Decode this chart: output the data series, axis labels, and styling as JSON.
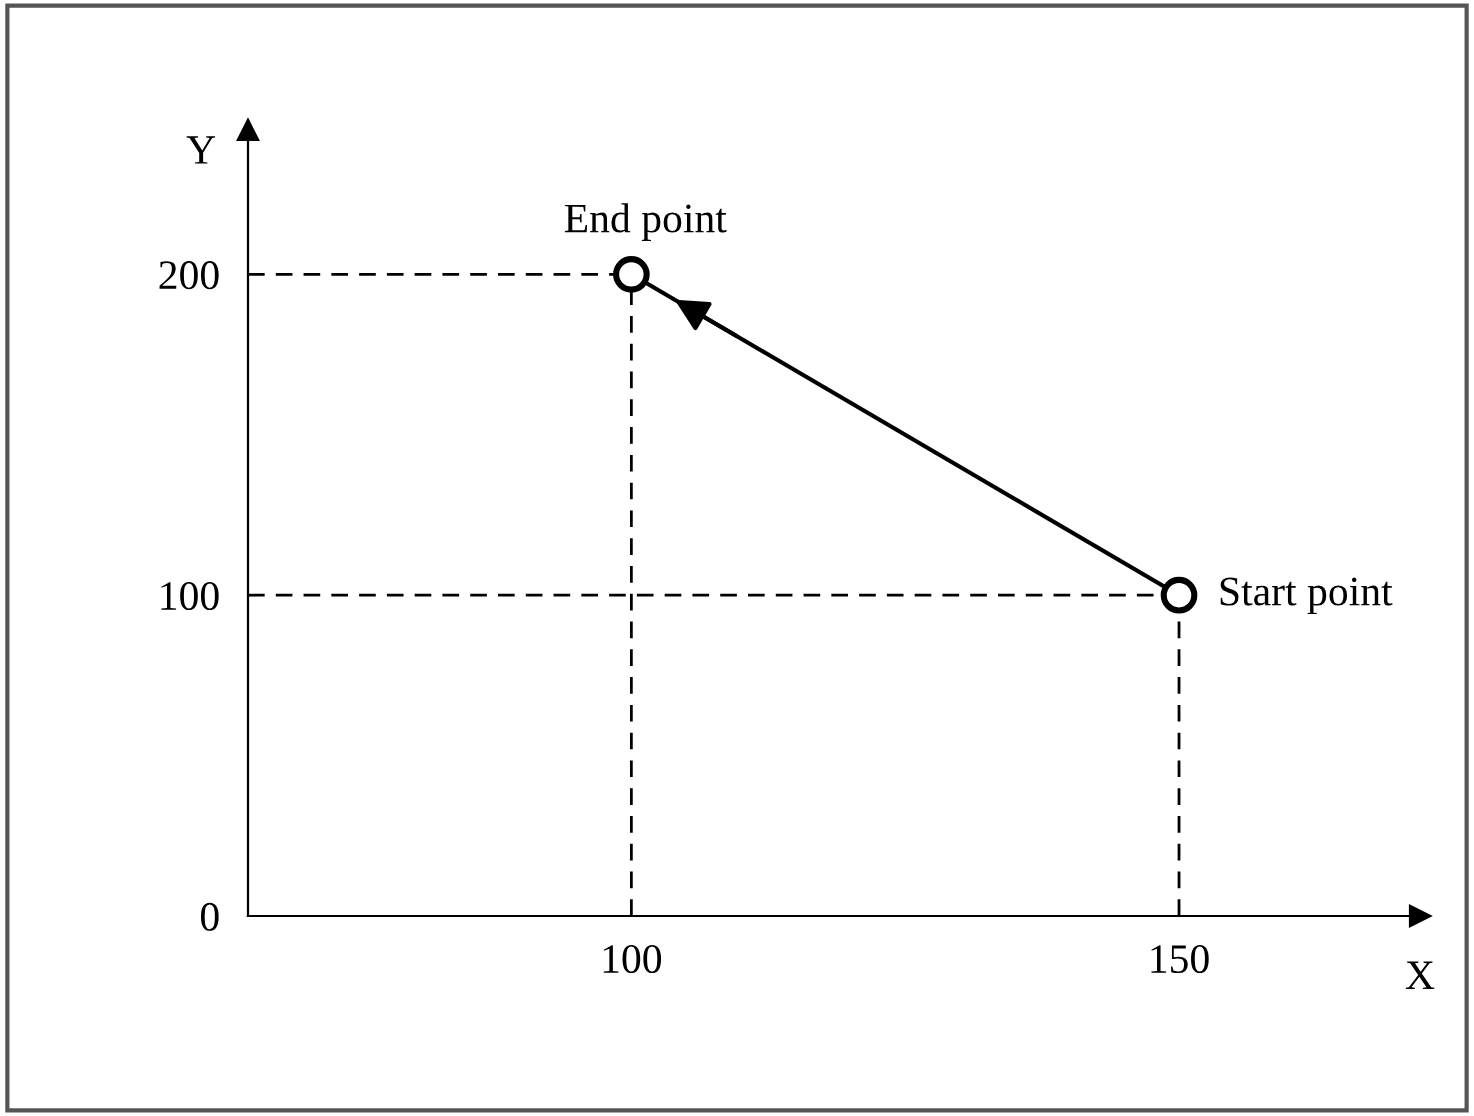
{
  "chart_data": {
    "type": "line",
    "xlabel": "X",
    "ylabel": "Y",
    "x": [
      150,
      100
    ],
    "series": [
      {
        "color": "#000000",
        "values": [
          100,
          200
        ]
      }
    ],
    "marker": "circle",
    "line_style": "solid",
    "grid": false,
    "xlim": [
      65,
      172
    ],
    "ylim": [
      0,
      245
    ],
    "xticks": [
      100,
      150
    ],
    "yticks": [
      0,
      100,
      200
    ],
    "ref_lines": [
      {
        "axis": "x",
        "value": 100,
        "line_style": "dashed",
        "color": "#000000"
      },
      {
        "axis": "x",
        "value": 150,
        "line_style": "dashed",
        "color": "#000000"
      },
      {
        "axis": "y",
        "value": 100,
        "line_style": "dashed",
        "color": "#000000"
      },
      {
        "axis": "y",
        "value": 200,
        "line_style": "dashed",
        "color": "#000000"
      }
    ],
    "annotations": [
      {
        "text": "End point",
        "x": 100,
        "y": 200
      },
      {
        "text": "Start point",
        "x": 150,
        "y": 100
      }
    ]
  }
}
